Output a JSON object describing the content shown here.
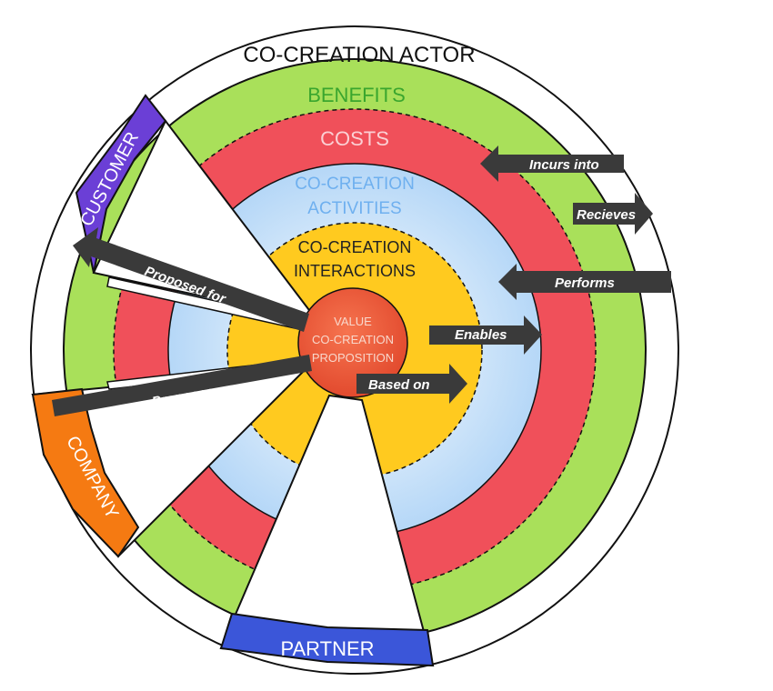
{
  "diagram": {
    "outer_label": "CO-CREATION ACTOR",
    "rings": {
      "benefits": "BENEFITS",
      "costs": "COSTS",
      "activities_line1": "CO-CREATION",
      "activities_line2": "ACTIVITIES",
      "interactions_line1": "CO-CREATION",
      "interactions_line2": "INTERACTIONS"
    },
    "center": {
      "line1": "VALUE",
      "line2": "CO-CREATION",
      "line3": "PROPOSITION"
    },
    "actors": {
      "customer": "CUSTOMER",
      "company": "COMPANY",
      "partner": "PARTNER"
    },
    "arrows": {
      "incurs_into": "Incurs into",
      "recieves": "Recieves",
      "performs": "Performs",
      "enables": "Enables",
      "based_on": "Based on",
      "proposed_for": "Proposed for",
      "proposes": "Proposes"
    },
    "colors": {
      "benefits": "#a9e05a",
      "costs": "#f0505a",
      "activities": "#cfe6fb",
      "interactions": "#ffca1f",
      "center": "#f25a3c",
      "customer": "#6b3fd6",
      "company": "#f57a12",
      "partner": "#3b56d9",
      "arrow": "#3a3a3a"
    }
  }
}
